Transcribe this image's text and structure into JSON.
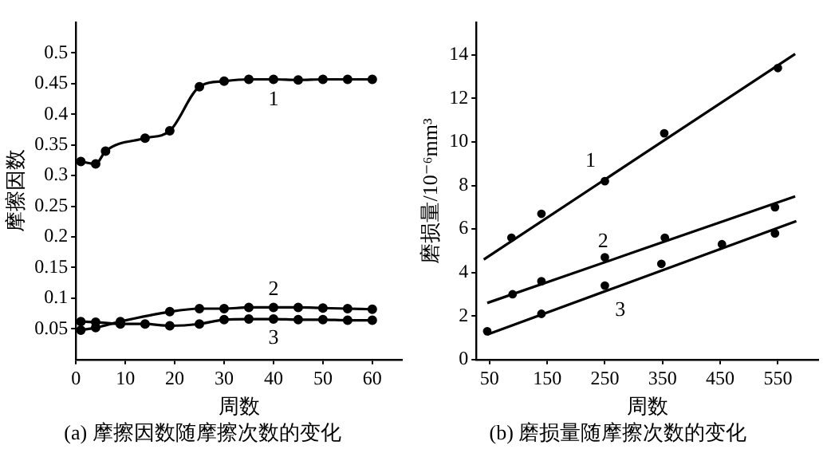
{
  "chart_data": [
    {
      "type": "line",
      "title": "(a) 摩擦因数随摩擦次数的变化",
      "xlabel": "周数",
      "ylabel": "摩擦因数",
      "xlim": [
        0,
        66
      ],
      "xticks": [
        0,
        10,
        20,
        30,
        40,
        50,
        60
      ],
      "ylim": [
        0,
        0.55
      ],
      "yticks": [
        0.05,
        0.1,
        0.15,
        0.2,
        0.25,
        0.3,
        0.35,
        0.4,
        0.45,
        0.5
      ],
      "grid": false,
      "legend": false,
      "marker": "circle",
      "series": [
        {
          "color": "#000000",
          "x": [
            1,
            4,
            6,
            14,
            19,
            25,
            30,
            35,
            40,
            45,
            50,
            55,
            60
          ],
          "values": [
            0.323,
            0.319,
            0.34,
            0.361,
            0.373,
            0.445,
            0.454,
            0.457,
            0.457,
            0.456,
            0.457,
            0.457,
            0.457
          ]
        },
        {
          "color": "#000000",
          "x": [
            1,
            4,
            9,
            19,
            25,
            30,
            35,
            40,
            45,
            50,
            55,
            60
          ],
          "values": [
            0.048,
            0.052,
            0.062,
            0.078,
            0.083,
            0.083,
            0.085,
            0.085,
            0.085,
            0.084,
            0.083,
            0.082
          ]
        },
        {
          "color": "#000000",
          "x": [
            1,
            4,
            9,
            14,
            19,
            25,
            30,
            35,
            40,
            45,
            50,
            55,
            60
          ],
          "values": [
            0.062,
            0.061,
            0.058,
            0.058,
            0.055,
            0.058,
            0.065,
            0.066,
            0.066,
            0.065,
            0.065,
            0.064,
            0.064
          ]
        }
      ],
      "annotations": [
        {
          "text": "1",
          "x": 40,
          "y": 0.457
        },
        {
          "text": "2",
          "x": 40,
          "y": 0.085
        },
        {
          "text": "3",
          "x": 40,
          "y": 0.066
        }
      ]
    },
    {
      "type": "scatter",
      "title": "(b) 磨损量随摩擦次数的变化",
      "xlabel": "周数",
      "ylabel": "磨损量/10⁻⁶mm³",
      "xlim": [
        27,
        620
      ],
      "xticks": [
        50,
        150,
        250,
        350,
        450,
        550
      ],
      "ylim": [
        0,
        15.5
      ],
      "yticks": [
        0,
        2,
        4,
        6,
        8,
        10,
        12,
        14
      ],
      "grid": false,
      "legend": false,
      "marker": "circle",
      "series": [
        {
          "color": "#000000",
          "x": [
            88,
            140,
            250,
            353,
            550
          ],
          "values": [
            5.6,
            6.7,
            8.2,
            10.4,
            13.4
          ]
        },
        {
          "color": "#000000",
          "x": [
            90,
            140,
            250,
            354,
            545
          ],
          "values": [
            3.0,
            3.6,
            4.7,
            5.6,
            7.0
          ]
        },
        {
          "color": "#000000",
          "x": [
            46,
            140,
            250,
            348,
            453,
            545
          ],
          "values": [
            1.3,
            2.1,
            3.4,
            4.4,
            5.3,
            5.8
          ]
        },
        {
          "type": "line",
          "marker": "none",
          "color": "#000000",
          "x": [
            40,
            580
          ],
          "values": [
            4.6,
            14.05
          ]
        },
        {
          "type": "line",
          "marker": "none",
          "color": "#000000",
          "x": [
            46,
            580
          ],
          "values": [
            2.6,
            7.5
          ]
        },
        {
          "type": "line",
          "marker": "none",
          "color": "#000000",
          "x": [
            46,
            582
          ],
          "values": [
            1.15,
            6.36
          ]
        }
      ],
      "annotations": [
        {
          "text": "1",
          "x": 250,
          "y": 8.1
        },
        {
          "text": "2",
          "x": 258,
          "y": 4.55
        },
        {
          "text": "3",
          "x": 260,
          "y": 3.23
        }
      ]
    }
  ]
}
